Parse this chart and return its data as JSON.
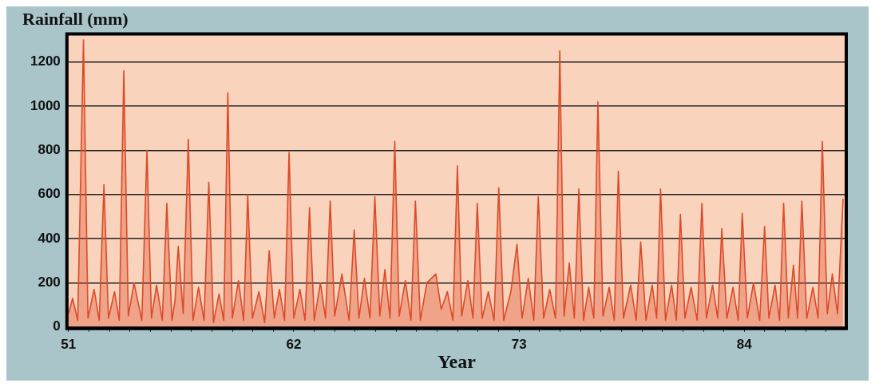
{
  "chart_data": {
    "type": "area",
    "ylabel": "Rainfall (mm)",
    "xlabel": "Year",
    "x": [
      51.0,
      51.2,
      51.45,
      51.73,
      51.95,
      52.25,
      52.5,
      52.73,
      52.95,
      53.25,
      53.48,
      53.7,
      53.92,
      54.2,
      54.58,
      54.83,
      55.05,
      55.3,
      55.58,
      55.8,
      56.05,
      56.2,
      56.36,
      56.6,
      56.85,
      57.08,
      57.35,
      57.62,
      57.85,
      58.08,
      58.35,
      58.58,
      58.78,
      59.0,
      59.3,
      59.55,
      59.75,
      59.98,
      60.3,
      60.58,
      60.8,
      61.05,
      61.3,
      61.55,
      61.77,
      62.0,
      62.3,
      62.55,
      62.77,
      63.0,
      63.3,
      63.55,
      63.78,
      64.0,
      64.35,
      64.7,
      64.95,
      65.18,
      65.45,
      65.72,
      65.96,
      66.2,
      66.45,
      66.7,
      66.93,
      67.15,
      67.45,
      67.72,
      67.94,
      68.18,
      68.5,
      68.94,
      69.2,
      69.5,
      69.77,
      69.99,
      70.2,
      70.5,
      70.75,
      70.96,
      71.2,
      71.5,
      71.78,
      72.01,
      72.25,
      72.6,
      72.9,
      73.15,
      73.45,
      73.72,
      73.94,
      74.2,
      74.5,
      74.78,
      74.99,
      75.2,
      75.45,
      75.7,
      75.92,
      76.15,
      76.4,
      76.65,
      76.85,
      77.1,
      77.4,
      77.65,
      77.85,
      78.1,
      78.45,
      78.72,
      78.94,
      79.2,
      79.5,
      79.72,
      79.91,
      80.15,
      80.45,
      80.68,
      80.88,
      81.1,
      81.4,
      81.7,
      81.93,
      82.15,
      82.45,
      82.7,
      82.9,
      83.15,
      83.45,
      83.7,
      83.9,
      84.15,
      84.45,
      84.75,
      84.99,
      85.2,
      85.5,
      85.72,
      85.92,
      86.15,
      86.4,
      86.6,
      86.81,
      87.05,
      87.35,
      87.6,
      87.81,
      88.05,
      88.3,
      88.55,
      88.82
    ],
    "series": [
      {
        "color": "#dc4a28",
        "values": [
          60,
          130,
          30,
          1300,
          40,
          170,
          30,
          645,
          40,
          160,
          30,
          1160,
          50,
          200,
          30,
          800,
          40,
          190,
          30,
          560,
          30,
          120,
          365,
          60,
          850,
          30,
          180,
          30,
          655,
          20,
          150,
          30,
          1060,
          40,
          210,
          30,
          600,
          40,
          160,
          20,
          345,
          40,
          170,
          30,
          790,
          40,
          170,
          30,
          540,
          30,
          200,
          40,
          570,
          50,
          240,
          30,
          440,
          40,
          220,
          40,
          590,
          50,
          260,
          40,
          840,
          50,
          210,
          30,
          570,
          30,
          200,
          240,
          80,
          160,
          30,
          730,
          50,
          210,
          40,
          560,
          40,
          160,
          30,
          630,
          30,
          160,
          375,
          40,
          220,
          30,
          590,
          40,
          170,
          40,
          1250,
          50,
          290,
          40,
          625,
          30,
          180,
          40,
          1020,
          50,
          180,
          30,
          705,
          40,
          190,
          30,
          385,
          30,
          190,
          40,
          625,
          30,
          190,
          30,
          510,
          40,
          180,
          30,
          560,
          40,
          190,
          40,
          445,
          40,
          180,
          30,
          515,
          40,
          200,
          30,
          455,
          40,
          190,
          30,
          560,
          40,
          280,
          40,
          570,
          40,
          180,
          40,
          840,
          60,
          240,
          60,
          580
        ]
      }
    ],
    "xlim": [
      51,
      88.9
    ],
    "xticks": [
      51,
      {
        "value": 52,
        "label": null
      },
      {
        "value": 53,
        "label": null
      },
      {
        "value": 54,
        "label": null
      },
      {
        "value": 55,
        "label": null
      },
      {
        "value": 56,
        "label": null
      },
      {
        "value": 57,
        "label": null
      },
      {
        "value": 58,
        "label": null
      },
      {
        "value": 59,
        "label": null
      },
      {
        "value": 60,
        "label": null
      },
      {
        "value": 61,
        "label": null
      },
      62,
      {
        "value": 63,
        "label": null
      },
      {
        "value": 64,
        "label": null
      },
      {
        "value": 65,
        "label": null
      },
      {
        "value": 66,
        "label": null
      },
      {
        "value": 67,
        "label": null
      },
      {
        "value": 68,
        "label": null
      },
      {
        "value": 69,
        "label": null
      },
      {
        "value": 70,
        "label": null
      },
      {
        "value": 71,
        "label": null
      },
      {
        "value": 72,
        "label": null
      },
      73,
      {
        "value": 74,
        "label": null
      },
      {
        "value": 75,
        "label": null
      },
      {
        "value": 76,
        "label": null
      },
      {
        "value": 77,
        "label": null
      },
      {
        "value": 78,
        "label": null
      },
      {
        "value": 79,
        "label": null
      },
      {
        "value": 80,
        "label": null
      },
      {
        "value": 81,
        "label": null
      },
      {
        "value": 82,
        "label": null
      },
      {
        "value": 83,
        "label": null
      },
      84,
      {
        "value": 85,
        "label": null
      },
      {
        "value": 86,
        "label": null
      },
      {
        "value": 87,
        "label": null
      },
      {
        "value": 88,
        "label": null
      }
    ],
    "ylim": [
      0,
      1320
    ],
    "yticks": [
      0,
      200,
      400,
      600,
      800,
      1000,
      1200
    ],
    "grid": "y",
    "legend": false,
    "marker": "none",
    "line_style": "solid"
  }
}
